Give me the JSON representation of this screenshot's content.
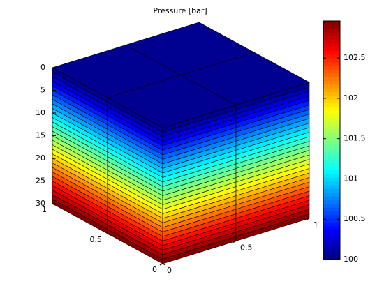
{
  "chart_data": {
    "type": "layered-cube",
    "title": "Pressure [bar]",
    "colormap": "jet",
    "layers": {
      "values": [
        100.05,
        100.15,
        100.25,
        100.35,
        100.45,
        100.55,
        100.65,
        100.75,
        100.85,
        100.95,
        101.05,
        101.15,
        101.25,
        101.35,
        101.45,
        101.55,
        101.65,
        101.75,
        101.85,
        101.95,
        102.05,
        102.15,
        102.25,
        102.35,
        102.45,
        102.55,
        102.65,
        102.75,
        102.85,
        102.95
      ]
    },
    "xlim": [
      0,
      1
    ],
    "xticks": [
      0,
      0.5,
      1
    ],
    "ylim": [
      0,
      1
    ],
    "yticks": [
      0,
      0.5,
      1
    ],
    "zlim": [
      0,
      30
    ],
    "zticks": [
      0,
      5,
      10,
      15,
      20,
      25,
      30
    ],
    "zdir": "reverse",
    "clim": [
      100,
      102.96
    ],
    "cticks": [
      100,
      100.5,
      101,
      101.5,
      102,
      102.5
    ]
  }
}
